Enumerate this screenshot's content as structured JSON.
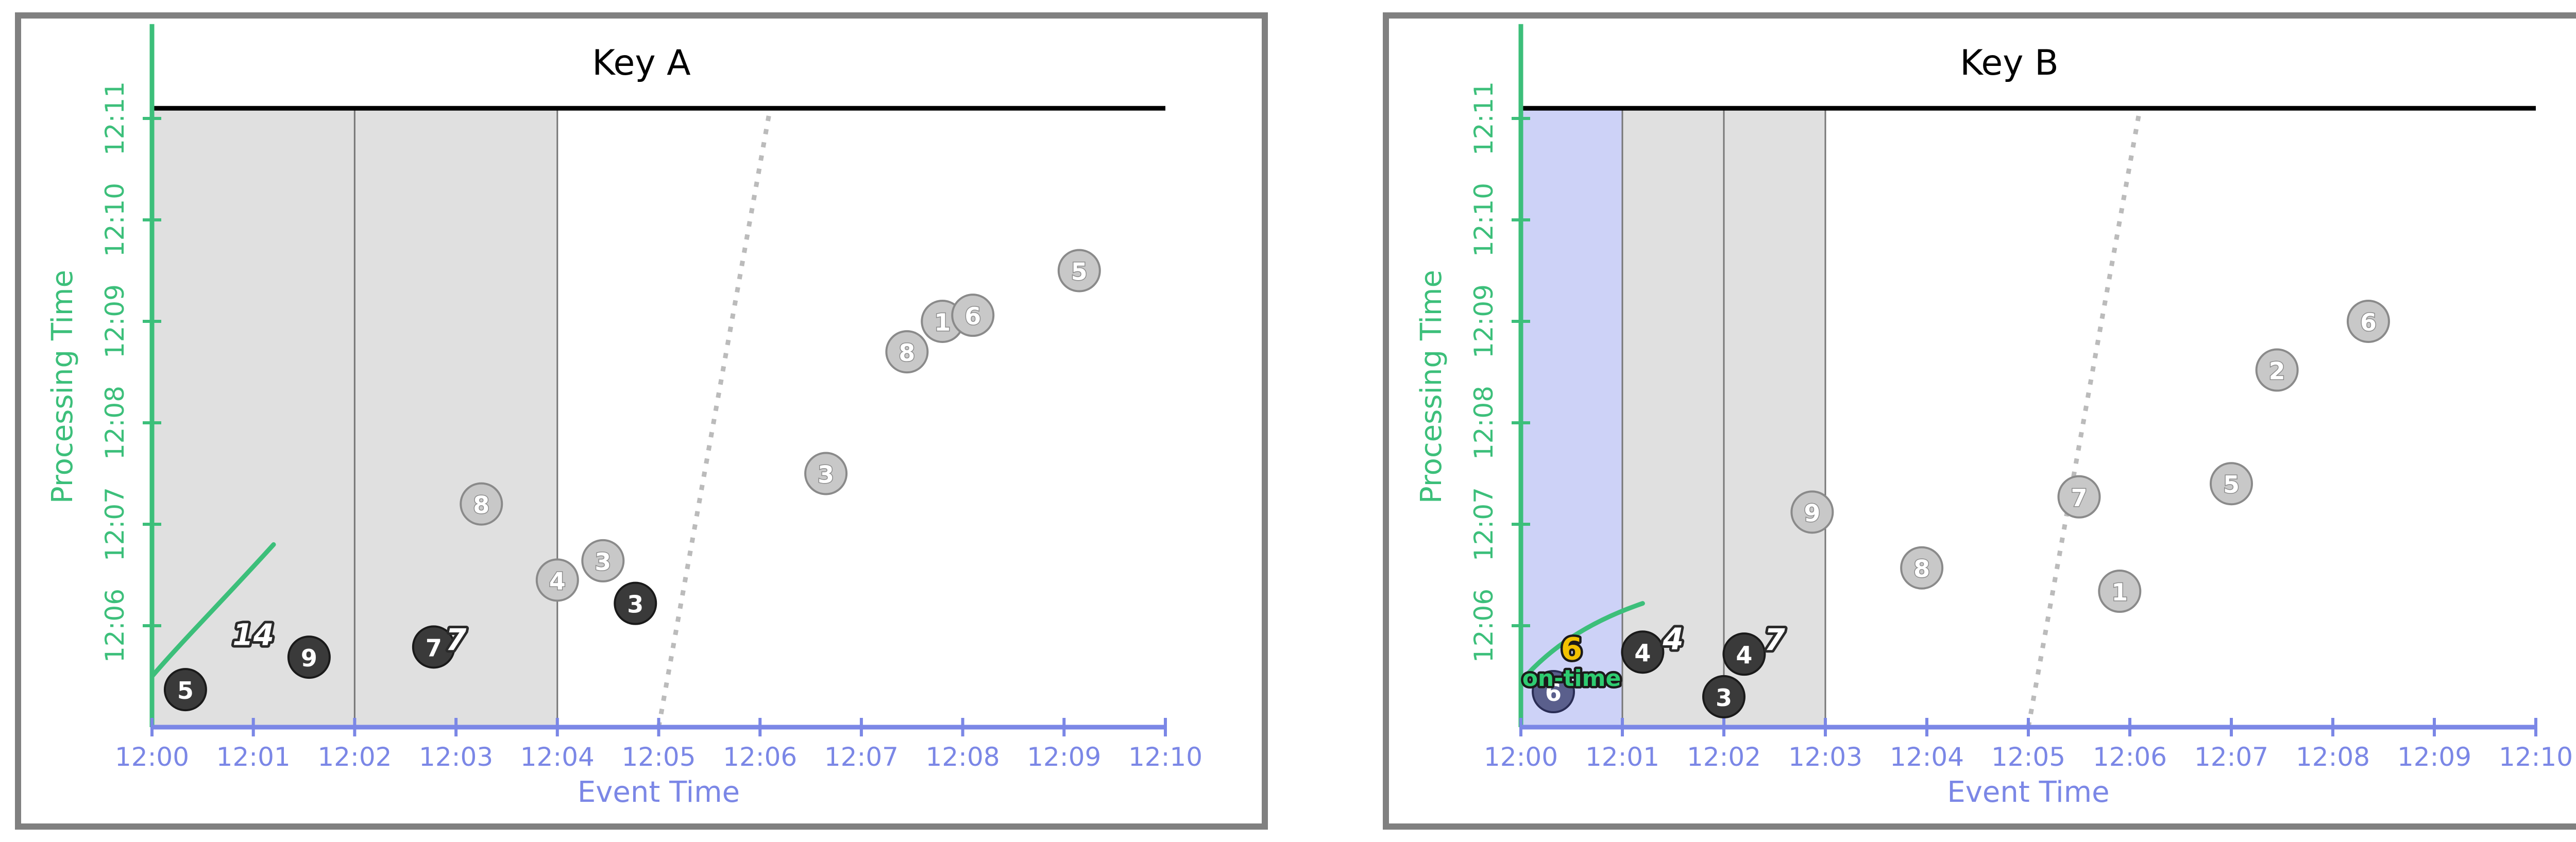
{
  "colors": {
    "event_axis": "#7b87e6",
    "processing_axis": "#3cbf7a",
    "watermark": "#3cbf7a",
    "frame": "#808080",
    "pane_fill": "#e0e0e0",
    "pane_stroke": "#777777",
    "ontime_pane_fill": "#cdd2f7",
    "light_point_fill": "#c8c8c8",
    "light_point_stroke": "#8a8a8a",
    "dark_point_fill": "#3a3a3a",
    "blue_point_fill": "#5a5f8c",
    "threshold_line": "#000000",
    "dotted_line": "#bbbbbb",
    "ontime_value": "#f2c200",
    "ontime_text": "#2ecc71"
  },
  "chart_data": [
    {
      "type": "scatter",
      "title": "Key A",
      "xlabel": "Event Time",
      "ylabel": "Processing Time",
      "xlim_minutes": [
        0,
        10
      ],
      "ylim_minutes": [
        0,
        12
      ],
      "x_ticks": [
        "12:00",
        "12:01",
        "12:02",
        "12:03",
        "12:04",
        "12:05",
        "12:06",
        "12:07",
        "12:08",
        "12:09",
        "12:10"
      ],
      "y_ticks": [
        "12:06",
        "12:07",
        "12:08",
        "12:09",
        "12:10",
        "12:11"
      ],
      "y_tick_values": [
        7,
        8,
        9,
        10,
        11,
        12
      ],
      "processing_threshold": 6.1,
      "panes": [
        {
          "start": 0,
          "end": 2,
          "fill": "gray"
        },
        {
          "start": 2,
          "end": 4,
          "fill": "gray"
        }
      ],
      "watermark_curve": [
        [
          0,
          0.5
        ],
        [
          0.3,
          0.85
        ],
        [
          0.7,
          1.25
        ],
        [
          1.2,
          1.8
        ]
      ],
      "dotted_segment": [
        [
          5.0,
          6.0
        ],
        [
          6.1,
          6.1
        ]
      ],
      "points": [
        {
          "x": 0.33,
          "y": 0.37,
          "label": "5",
          "state": "dark"
        },
        {
          "x": 1.55,
          "y": 0.69,
          "label": "9",
          "state": "dark"
        },
        {
          "x": 2.78,
          "y": 0.79,
          "label": "7",
          "state": "dark"
        },
        {
          "x": 3.25,
          "y": 2.2,
          "label": "8",
          "state": "light"
        },
        {
          "x": 4.0,
          "y": 1.45,
          "label": "4",
          "state": "light"
        },
        {
          "x": 4.45,
          "y": 1.64,
          "label": "3",
          "state": "light"
        },
        {
          "x": 4.77,
          "y": 1.22,
          "label": "3",
          "state": "dark"
        },
        {
          "x": 6.65,
          "y": 2.5,
          "label": "3",
          "state": "light"
        },
        {
          "x": 7.45,
          "y": 3.7,
          "label": "8",
          "state": "light"
        },
        {
          "x": 7.8,
          "y": 4.0,
          "label": "1",
          "state": "light"
        },
        {
          "x": 8.1,
          "y": 4.06,
          "label": "6",
          "state": "light"
        },
        {
          "x": 9.15,
          "y": 4.5,
          "label": "5",
          "state": "light"
        }
      ],
      "results": [
        {
          "x": 1.0,
          "y": 0.91,
          "label": "14"
        },
        {
          "x": 3.0,
          "y": 0.86,
          "label": "7"
        }
      ],
      "annotations": []
    },
    {
      "type": "scatter",
      "title": "Key B",
      "xlabel": "Event Time",
      "ylabel": "Processing Time",
      "xlim_minutes": [
        0,
        10
      ],
      "ylim_minutes": [
        0,
        12
      ],
      "x_ticks": [
        "12:00",
        "12:01",
        "12:02",
        "12:03",
        "12:04",
        "12:05",
        "12:06",
        "12:07",
        "12:08",
        "12:09",
        "12:10"
      ],
      "y_ticks": [
        "12:06",
        "12:07",
        "12:08",
        "12:09",
        "12:10",
        "12:11"
      ],
      "y_tick_values": [
        7,
        8,
        9,
        10,
        11,
        12
      ],
      "processing_threshold": 6.1,
      "panes": [
        {
          "start": 0,
          "end": 1,
          "fill": "blue"
        },
        {
          "start": 1,
          "end": 2,
          "fill": "gray"
        },
        {
          "start": 2,
          "end": 3,
          "fill": "gray"
        }
      ],
      "watermark_curve": [
        [
          0,
          0.45
        ],
        [
          0.3,
          0.8
        ],
        [
          0.7,
          1.05
        ],
        [
          1.2,
          1.22
        ]
      ],
      "dotted_segment": [
        [
          5.0,
          6.0
        ],
        [
          6.1,
          6.1
        ]
      ],
      "points": [
        {
          "x": 0.32,
          "y": 0.35,
          "label": "6",
          "state": "blue"
        },
        {
          "x": 1.2,
          "y": 0.74,
          "label": "4",
          "state": "dark"
        },
        {
          "x": 2.0,
          "y": 0.3,
          "label": "3",
          "state": "dark"
        },
        {
          "x": 2.2,
          "y": 0.72,
          "label": "4",
          "state": "dark"
        },
        {
          "x": 2.87,
          "y": 2.12,
          "label": "9",
          "state": "light"
        },
        {
          "x": 3.95,
          "y": 1.57,
          "label": "8",
          "state": "light"
        },
        {
          "x": 5.5,
          "y": 2.27,
          "label": "7",
          "state": "light"
        },
        {
          "x": 5.9,
          "y": 1.34,
          "label": "1",
          "state": "light"
        },
        {
          "x": 7.0,
          "y": 2.4,
          "label": "5",
          "state": "light"
        },
        {
          "x": 7.45,
          "y": 3.52,
          "label": "2",
          "state": "light"
        },
        {
          "x": 8.35,
          "y": 4.0,
          "label": "6",
          "state": "light"
        }
      ],
      "results": [
        {
          "x": 1.5,
          "y": 0.87,
          "label": "4"
        },
        {
          "x": 2.5,
          "y": 0.86,
          "label": "7"
        }
      ],
      "annotations": [
        {
          "x": 0.5,
          "y": 0.77,
          "label": "6",
          "kind": "value"
        },
        {
          "x": 0.5,
          "y": 0.48,
          "label": "on-time",
          "kind": "text"
        }
      ]
    }
  ]
}
